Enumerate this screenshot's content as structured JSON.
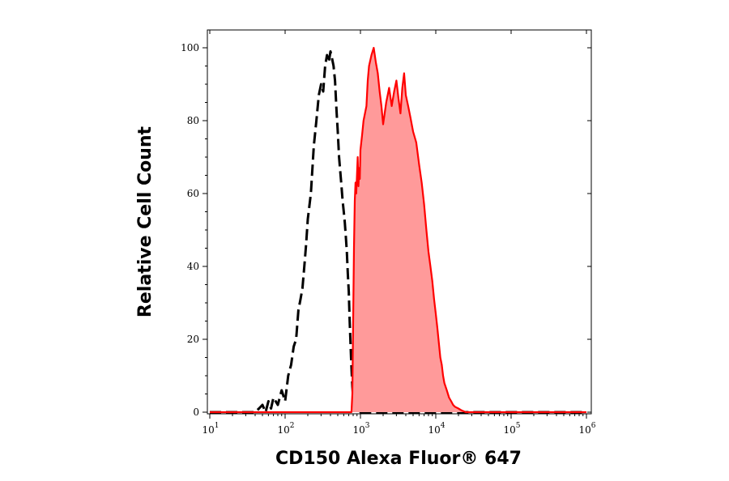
{
  "chart_data": {
    "type": "area",
    "xlabel": "CD150 Alexa Fluor® 647",
    "ylabel": "Relative Cell Count",
    "x_scale": "log",
    "xlim": [
      10,
      1000000
    ],
    "ylim": [
      0,
      105
    ],
    "grid": false,
    "x_ticks": [
      {
        "value": 10,
        "base": "10",
        "exp": "1"
      },
      {
        "value": 100,
        "base": "10",
        "exp": "2"
      },
      {
        "value": 1000,
        "base": "10",
        "exp": "3"
      },
      {
        "value": 10000,
        "base": "10",
        "exp": "4"
      },
      {
        "value": 100000,
        "base": "10",
        "exp": "5"
      },
      {
        "value": 1000000,
        "base": "10",
        "exp": "6"
      }
    ],
    "y_ticks": [
      0,
      20,
      40,
      60,
      80,
      100
    ],
    "series": [
      {
        "style": "dashed",
        "color": "#000000",
        "fill": null,
        "x": [
          10,
          30,
          40,
          45,
          50,
          55,
          60,
          65,
          70,
          80,
          90,
          100,
          110,
          120,
          130,
          140,
          150,
          160,
          170,
          180,
          190,
          200,
          220,
          240,
          260,
          280,
          300,
          320,
          340,
          360,
          380,
          400,
          420,
          440,
          460,
          480,
          500,
          520,
          540,
          560,
          580,
          600,
          620,
          640,
          660,
          680,
          700,
          720,
          750,
          780,
          800,
          850,
          900,
          1000,
          10000,
          1000000
        ],
        "y": [
          0,
          0,
          0,
          1,
          2,
          0,
          3,
          1,
          4,
          2,
          6,
          3,
          10,
          13,
          18,
          20,
          28,
          31,
          34,
          40,
          46,
          53,
          60,
          73,
          80,
          87,
          90,
          88,
          95,
          98,
          96,
          99,
          97,
          95,
          91,
          83,
          77,
          70,
          66,
          62,
          58,
          55,
          52,
          48,
          44,
          38,
          33,
          25,
          15,
          7,
          4,
          2,
          1,
          0,
          0,
          0
        ]
      },
      {
        "style": "solid",
        "color": "#ff0000",
        "fill": "#ff9a9a",
        "x": [
          10,
          700,
          760,
          780,
          800,
          820,
          840,
          860,
          880,
          900,
          920,
          940,
          960,
          980,
          1000,
          1050,
          1100,
          1150,
          1200,
          1250,
          1300,
          1400,
          1500,
          1600,
          1700,
          1800,
          1900,
          2000,
          2200,
          2400,
          2600,
          2800,
          3000,
          3200,
          3400,
          3600,
          3800,
          4000,
          4300,
          4600,
          5000,
          5500,
          6000,
          6500,
          7000,
          7500,
          8000,
          8500,
          9000,
          9500,
          10000,
          10500,
          11000,
          11500,
          12000,
          12500,
          13000,
          14000,
          15000,
          16000,
          17000,
          18000,
          20000,
          22000,
          25000,
          30000,
          1000000
        ],
        "y": [
          0,
          0,
          0,
          5,
          25,
          45,
          58,
          63,
          60,
          65,
          70,
          62,
          67,
          64,
          72,
          76,
          80,
          82,
          84,
          91,
          95,
          98,
          100,
          96,
          93,
          88,
          84,
          79,
          85,
          89,
          84,
          88,
          91,
          86,
          82,
          89,
          93,
          87,
          84,
          81,
          77,
          74,
          68,
          63,
          57,
          50,
          44,
          40,
          36,
          31,
          27,
          23,
          19,
          15,
          13,
          10,
          8,
          6,
          4,
          3,
          2,
          1.5,
          1,
          0.5,
          0,
          0,
          0
        ]
      }
    ]
  }
}
